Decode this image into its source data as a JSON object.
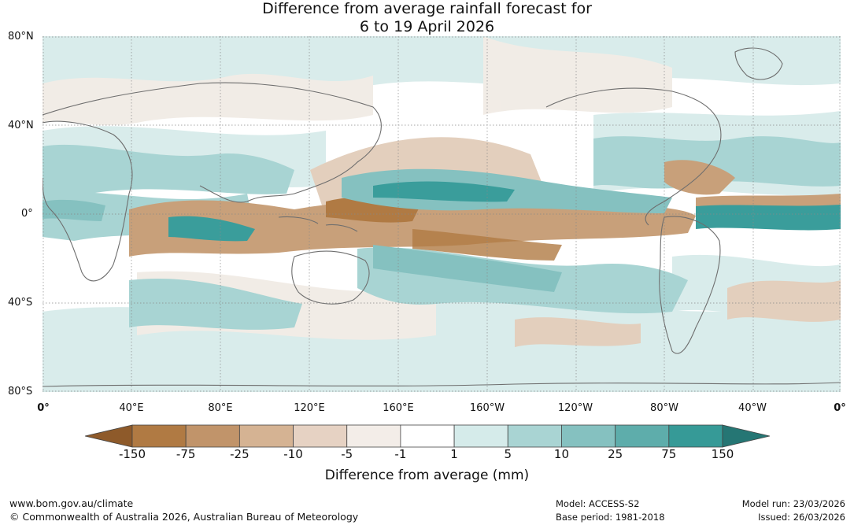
{
  "title": {
    "line1": "Difference from average rainfall forecast for",
    "line2": "6 to 19 April 2026"
  },
  "map": {
    "latitude_labels": [
      "80°N",
      "40°N",
      "0°",
      "40°S",
      "80°S"
    ],
    "longitude_labels": [
      "0°",
      "40°E",
      "80°E",
      "120°E",
      "160°E",
      "160°W",
      "120°W",
      "80°W",
      "40°W",
      "0°"
    ],
    "colors": {
      "dry_strong": "#b07a43",
      "dry_medium": "#c8a07a",
      "dry_light": "#e3cfbd",
      "dry_faint": "#f1ebe5",
      "neutral": "#ffffff",
      "wet_faint": "#d7ebea",
      "wet_light": "#a8d4d3",
      "wet_medium": "#85c1c0",
      "wet_strong": "#3a9d9b",
      "land_outline": "#6e6e6e",
      "grid": "#888888"
    }
  },
  "legend": {
    "title": "Difference from average (mm)",
    "tick_labels": [
      "-150",
      "-75",
      "-25",
      "-10",
      "-5",
      "-1",
      "1",
      "5",
      "10",
      "25",
      "75",
      "150"
    ],
    "colors": [
      "#8e5a2a",
      "#b07a43",
      "#c1946a",
      "#d5b393",
      "#e6d2c3",
      "#f3ede8",
      "#ffffff",
      "#d5ebea",
      "#a9d4d3",
      "#85c1c0",
      "#5eadab",
      "#369a97",
      "#257674"
    ]
  },
  "footer": {
    "website": "www.bom.gov.au/climate",
    "copyright": "© Commonwealth of Australia 2026, Australian Bureau of Meteorology",
    "model": "Model: ACCESS-S2",
    "base_period": "Base period: 1981-2018",
    "model_run": "Model run: 23/03/2026",
    "issued": "Issued: 26/03/2026"
  }
}
